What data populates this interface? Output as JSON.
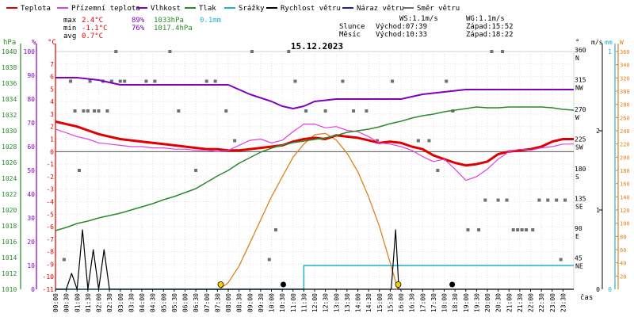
{
  "legend": [
    {
      "label": "Teplota",
      "color": "#e00000"
    },
    {
      "label": "Přízemní teplota",
      "color": "#e040e0"
    },
    {
      "label": "Vlhkost",
      "color": "#8000c0"
    },
    {
      "label": "Tlak",
      "color": "#2a8a2a"
    },
    {
      "label": "Srážky",
      "color": "#20b0d0"
    },
    {
      "label": "Rychlost větru",
      "color": "#000000"
    },
    {
      "label": "Náraz větru",
      "color": "#202090"
    },
    {
      "label": "Směr větru",
      "color": "#707070"
    }
  ],
  "stats": {
    "max_label": "max",
    "max_temp": "2.4°C",
    "max_hum": "89%",
    "max_press": "1033hPa",
    "max_rain": "0.1mm",
    "min_label": "min",
    "min_temp": "-1.1°C",
    "min_hum": "76%",
    "min_press": "1017.4hPa",
    "avg_label": "avg",
    "avg_temp": "0.7°C"
  },
  "info": {
    "ws": "WS:1.1m/s",
    "wg": "WG:1.1m/s",
    "sun_label": "Slunce",
    "sunrise": "Východ:07:39",
    "sunset": "Západ:15:52",
    "moon_label": "Měsíc",
    "moonrise": "Východ:10:33",
    "moonset": "Západ:18:22"
  },
  "chart_data": {
    "type": "line",
    "title": "15.12.2023",
    "x_unit_label": "čas",
    "x_ticks": [
      "00:00",
      "00:30",
      "01:00",
      "01:30",
      "02:00",
      "02:30",
      "03:00",
      "03:30",
      "04:00",
      "04:30",
      "05:00",
      "05:30",
      "06:00",
      "06:30",
      "07:00",
      "07:30",
      "08:00",
      "08:30",
      "09:00",
      "09:30",
      "10:00",
      "10:30",
      "11:00",
      "11:30",
      "12:00",
      "12:30",
      "13:00",
      "13:30",
      "14:00",
      "14:30",
      "15:00",
      "15:30",
      "16:00",
      "16:30",
      "17:00",
      "17:30",
      "18:00",
      "18:30",
      "19:00",
      "19:30",
      "20:00",
      "20:30",
      "21:00",
      "21:30",
      "22:00",
      "22:30",
      "23:00",
      "23:30"
    ],
    "axes": {
      "hpa": {
        "label": "hPa",
        "range": [
          1010,
          1040
        ],
        "ticks": [
          1010,
          1012,
          1014,
          1016,
          1018,
          1020,
          1022,
          1024,
          1026,
          1028,
          1030,
          1032,
          1034,
          1036,
          1038,
          1040
        ]
      },
      "pct": {
        "label": "%",
        "range": [
          0,
          100
        ],
        "ticks": [
          0,
          10,
          20,
          30,
          40,
          50,
          60,
          70,
          80,
          90,
          100
        ]
      },
      "degc": {
        "label": "°C",
        "range": [
          -11,
          8
        ],
        "ticks": [
          -11,
          -10,
          -9,
          -8,
          -7,
          -6,
          -5,
          -4,
          -3,
          -2,
          -1,
          0,
          1,
          2,
          3,
          4,
          5,
          6,
          7
        ]
      },
      "deg": {
        "label": "°",
        "range": [
          0,
          360
        ],
        "ticks": [
          {
            "v": 45,
            "l": "45",
            "d": "NE"
          },
          {
            "v": 90,
            "l": "90",
            "d": "E"
          },
          {
            "v": 135,
            "l": "135",
            "d": "SE"
          },
          {
            "v": 180,
            "l": "180",
            "d": "S"
          },
          {
            "v": 225,
            "l": "225",
            "d": "SW"
          },
          {
            "v": 270,
            "l": "270",
            "d": "W"
          },
          {
            "v": 315,
            "l": "315",
            "d": "NW"
          },
          {
            "v": 360,
            "l": "360",
            "d": "N"
          }
        ]
      },
      "ms": {
        "label": "m/s",
        "range": [
          0,
          3
        ],
        "ticks": [
          1,
          2
        ]
      },
      "mm": {
        "label": "mm",
        "range": [
          0,
          1
        ],
        "ticks": [
          1
        ]
      },
      "w": {
        "label": "W",
        "range": [
          0,
          360
        ],
        "ticks": [
          20,
          40,
          60,
          80,
          100,
          120,
          140,
          160,
          180,
          200,
          220,
          240,
          260,
          280,
          300,
          320,
          340,
          360
        ]
      }
    },
    "series": [
      {
        "name": "Teplota",
        "axis": "degc",
        "color": "#e00000",
        "width": 3,
        "points": [
          [
            0,
            2.4
          ],
          [
            0.5,
            2.2
          ],
          [
            1,
            2.0
          ],
          [
            1.5,
            1.7
          ],
          [
            2,
            1.4
          ],
          [
            2.5,
            1.2
          ],
          [
            3,
            1.0
          ],
          [
            3.5,
            0.9
          ],
          [
            4,
            0.8
          ],
          [
            4.5,
            0.7
          ],
          [
            5,
            0.6
          ],
          [
            5.5,
            0.5
          ],
          [
            6,
            0.4
          ],
          [
            6.5,
            0.3
          ],
          [
            7,
            0.2
          ],
          [
            7.5,
            0.2
          ],
          [
            8,
            0.1
          ],
          [
            8.5,
            0.1
          ],
          [
            9,
            0.2
          ],
          [
            9.5,
            0.3
          ],
          [
            10,
            0.4
          ],
          [
            10.5,
            0.5
          ],
          [
            11,
            0.8
          ],
          [
            11.5,
            1.0
          ],
          [
            12,
            1.1
          ],
          [
            12.5,
            1.0
          ],
          [
            13,
            1.3
          ],
          [
            13.5,
            1.2
          ],
          [
            14,
            1.1
          ],
          [
            14.5,
            0.9
          ],
          [
            15,
            0.7
          ],
          [
            15.5,
            0.8
          ],
          [
            16,
            0.7
          ],
          [
            16.5,
            0.4
          ],
          [
            17,
            0.2
          ],
          [
            17.5,
            -0.3
          ],
          [
            18,
            -0.6
          ],
          [
            18.5,
            -0.9
          ],
          [
            19,
            -1.1
          ],
          [
            19.5,
            -1.0
          ],
          [
            20,
            -0.8
          ],
          [
            20.5,
            -0.2
          ],
          [
            21,
            0.0
          ],
          [
            21.5,
            0.1
          ],
          [
            22,
            0.2
          ],
          [
            22.5,
            0.4
          ],
          [
            23,
            0.8
          ],
          [
            23.5,
            1.0
          ],
          [
            24,
            1.0
          ]
        ]
      },
      {
        "name": "Přízemní teplota",
        "axis": "degc",
        "color": "#e040e0",
        "width": 1.2,
        "points": [
          [
            0,
            1.8
          ],
          [
            0.5,
            1.5
          ],
          [
            1,
            1.2
          ],
          [
            1.5,
            1.0
          ],
          [
            2,
            0.7
          ],
          [
            2.5,
            0.6
          ],
          [
            3,
            0.5
          ],
          [
            3.5,
            0.4
          ],
          [
            4,
            0.4
          ],
          [
            4.5,
            0.3
          ],
          [
            5,
            0.3
          ],
          [
            5.5,
            0.2
          ],
          [
            6,
            0.2
          ],
          [
            6.5,
            0.1
          ],
          [
            7,
            0.1
          ],
          [
            7.5,
            0.0
          ],
          [
            8,
            0.1
          ],
          [
            8.5,
            0.5
          ],
          [
            9,
            0.9
          ],
          [
            9.5,
            1.0
          ],
          [
            10,
            0.7
          ],
          [
            10.5,
            0.9
          ],
          [
            11,
            1.6
          ],
          [
            11.5,
            2.2
          ],
          [
            12,
            2.2
          ],
          [
            12.5,
            1.9
          ],
          [
            13,
            2.0
          ],
          [
            13.5,
            1.7
          ],
          [
            14,
            1.6
          ],
          [
            14.5,
            1.2
          ],
          [
            15,
            0.7
          ],
          [
            15.5,
            0.6
          ],
          [
            16,
            0.4
          ],
          [
            16.5,
            0.1
          ],
          [
            17,
            -0.4
          ],
          [
            17.5,
            -0.8
          ],
          [
            18,
            -0.6
          ],
          [
            18.5,
            -1.4
          ],
          [
            19,
            -2.3
          ],
          [
            19.5,
            -2.0
          ],
          [
            20,
            -1.4
          ],
          [
            20.5,
            -0.6
          ],
          [
            21,
            0.0
          ],
          [
            21.5,
            0.2
          ],
          [
            22,
            0.1
          ],
          [
            22.5,
            0.3
          ],
          [
            23,
            0.4
          ],
          [
            23.5,
            0.6
          ],
          [
            24,
            0.6
          ]
        ]
      },
      {
        "name": "Vlhkost",
        "axis": "pct",
        "color": "#8000c0",
        "width": 2,
        "points": [
          [
            0,
            89
          ],
          [
            1,
            89
          ],
          [
            2,
            88
          ],
          [
            3,
            86
          ],
          [
            4,
            86
          ],
          [
            5,
            86
          ],
          [
            6,
            86
          ],
          [
            7,
            86
          ],
          [
            8,
            86
          ],
          [
            9,
            82
          ],
          [
            10,
            79
          ],
          [
            10.5,
            77
          ],
          [
            11,
            76
          ],
          [
            11.5,
            77
          ],
          [
            12,
            79
          ],
          [
            13,
            80
          ],
          [
            14,
            80
          ],
          [
            15,
            80
          ],
          [
            16,
            80
          ],
          [
            17,
            82
          ],
          [
            18,
            83
          ],
          [
            19,
            84
          ],
          [
            20,
            84
          ],
          [
            21,
            84
          ],
          [
            22,
            84
          ],
          [
            23,
            84
          ],
          [
            24,
            84
          ]
        ]
      },
      {
        "name": "Tlak",
        "axis": "hpa",
        "color": "#2a8a2a",
        "width": 1.5,
        "points": [
          [
            0,
            1017.4
          ],
          [
            0.5,
            1017.8
          ],
          [
            1,
            1018.3
          ],
          [
            1.5,
            1018.6
          ],
          [
            2,
            1019.0
          ],
          [
            2.5,
            1019.3
          ],
          [
            3,
            1019.6
          ],
          [
            3.5,
            1020.0
          ],
          [
            4,
            1020.4
          ],
          [
            4.5,
            1020.8
          ],
          [
            5,
            1021.3
          ],
          [
            5.5,
            1021.7
          ],
          [
            6,
            1022.2
          ],
          [
            6.5,
            1022.7
          ],
          [
            7,
            1023.5
          ],
          [
            7.5,
            1024.3
          ],
          [
            8,
            1025.0
          ],
          [
            8.5,
            1025.9
          ],
          [
            9,
            1026.6
          ],
          [
            9.5,
            1027.3
          ],
          [
            10,
            1027.8
          ],
          [
            10.5,
            1028.2
          ],
          [
            11,
            1028.5
          ],
          [
            11.5,
            1028.7
          ],
          [
            12,
            1028.9
          ],
          [
            12.5,
            1029.1
          ],
          [
            13,
            1029.4
          ],
          [
            13.5,
            1029.8
          ],
          [
            14,
            1030.0
          ],
          [
            14.5,
            1030.2
          ],
          [
            15,
            1030.5
          ],
          [
            15.5,
            1030.9
          ],
          [
            16,
            1031.2
          ],
          [
            16.5,
            1031.6
          ],
          [
            17,
            1031.9
          ],
          [
            17.5,
            1032.1
          ],
          [
            18,
            1032.4
          ],
          [
            18.5,
            1032.6
          ],
          [
            19,
            1032.8
          ],
          [
            19.5,
            1033.0
          ],
          [
            20,
            1032.9
          ],
          [
            20.5,
            1032.9
          ],
          [
            21,
            1033.0
          ],
          [
            21.5,
            1033.0
          ],
          [
            22,
            1033.0
          ],
          [
            22.5,
            1033.0
          ],
          [
            23,
            1032.9
          ],
          [
            23.5,
            1032.7
          ],
          [
            24,
            1032.6
          ]
        ]
      },
      {
        "name": "Srážky",
        "axis": "mm",
        "color": "#20b0d0",
        "width": 1.5,
        "points": [
          [
            0,
            0
          ],
          [
            11.5,
            0
          ],
          [
            11.5,
            0.1
          ],
          [
            24,
            0.1
          ]
        ]
      },
      {
        "name": "Rychlost větru",
        "axis": "ms",
        "color": "#000000",
        "width": 1.2,
        "points": [
          [
            0,
            0
          ],
          [
            0.5,
            0
          ],
          [
            0.75,
            0.2
          ],
          [
            1,
            0
          ],
          [
            1.25,
            0.75
          ],
          [
            1.5,
            0
          ],
          [
            1.75,
            0.5
          ],
          [
            2,
            0
          ],
          [
            2.25,
            0.5
          ],
          [
            2.5,
            0
          ],
          [
            15.55,
            0
          ],
          [
            15.75,
            0.75
          ],
          [
            15.9,
            0
          ],
          [
            24,
            0
          ]
        ]
      }
    ],
    "direction_points": [
      [
        0.7,
        315
      ],
      [
        0.9,
        270
      ],
      [
        1.1,
        180
      ],
      [
        1.3,
        270
      ],
      [
        1.5,
        270
      ],
      [
        1.6,
        315
      ],
      [
        1.8,
        270
      ],
      [
        2.0,
        270
      ],
      [
        2.2,
        315
      ],
      [
        2.4,
        270
      ],
      [
        2.6,
        315
      ],
      [
        2.8,
        360
      ],
      [
        3.0,
        315
      ],
      [
        3.2,
        315
      ],
      [
        4.2,
        315
      ],
      [
        4.6,
        315
      ],
      [
        5.3,
        360
      ],
      [
        5.7,
        270
      ],
      [
        6.5,
        180
      ],
      [
        7.0,
        315
      ],
      [
        7.4,
        315
      ],
      [
        7.9,
        270
      ],
      [
        8.3,
        225
      ],
      [
        9.1,
        360
      ],
      [
        10.2,
        90
      ],
      [
        10.8,
        360
      ],
      [
        11.1,
        315
      ],
      [
        11.6,
        270
      ],
      [
        12.5,
        270
      ],
      [
        13.3,
        315
      ],
      [
        13.8,
        270
      ],
      [
        14.4,
        270
      ],
      [
        14.9,
        225
      ],
      [
        15.6,
        315
      ],
      [
        16.8,
        225
      ],
      [
        17.3,
        225
      ],
      [
        17.7,
        180
      ],
      [
        18.1,
        315
      ],
      [
        18.4,
        270
      ],
      [
        19.1,
        90
      ],
      [
        19.6,
        90
      ],
      [
        19.9,
        135
      ],
      [
        20.2,
        360
      ],
      [
        20.5,
        135
      ],
      [
        20.7,
        360
      ],
      [
        20.9,
        135
      ],
      [
        21.2,
        90
      ],
      [
        21.4,
        90
      ],
      [
        21.6,
        90
      ],
      [
        21.8,
        90
      ],
      [
        22.1,
        90
      ],
      [
        22.4,
        135
      ],
      [
        22.8,
        135
      ],
      [
        23.2,
        135
      ],
      [
        23.4,
        45
      ],
      [
        23.6,
        135
      ],
      [
        0.4,
        45
      ],
      [
        9.9,
        45
      ]
    ],
    "solar_points": [
      [
        7.6,
        0
      ],
      [
        8,
        10
      ],
      [
        8.5,
        35
      ],
      [
        9,
        70
      ],
      [
        9.5,
        105
      ],
      [
        10,
        140
      ],
      [
        10.5,
        170
      ],
      [
        11,
        200
      ],
      [
        11.5,
        220
      ],
      [
        12,
        234
      ],
      [
        12.5,
        236
      ],
      [
        13,
        226
      ],
      [
        13.5,
        206
      ],
      [
        14,
        178
      ],
      [
        14.5,
        140
      ],
      [
        15,
        95
      ],
      [
        15.5,
        40
      ],
      [
        15.85,
        0
      ]
    ],
    "solar_color": "#e08020"
  }
}
